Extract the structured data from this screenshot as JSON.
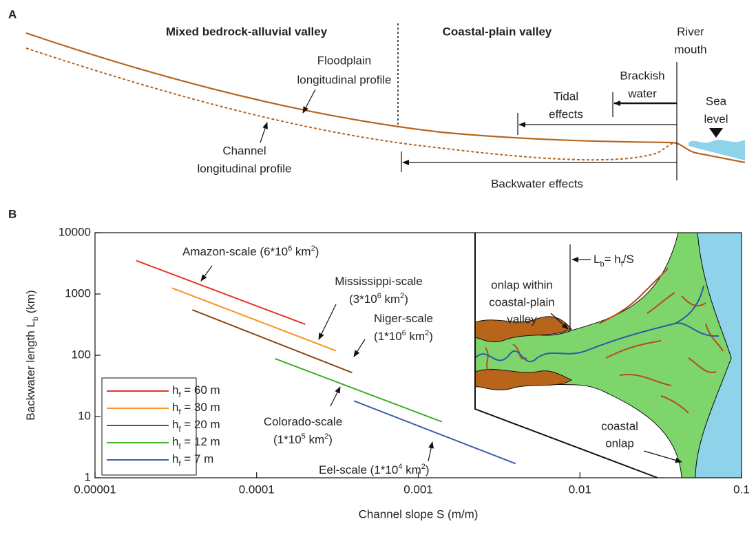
{
  "panel_a": {
    "label": "A",
    "zone_left": "Mixed bedrock-alluvial valley",
    "zone_right": "Coastal-plain valley",
    "river_mouth": [
      "River",
      "mouth"
    ],
    "floodplain": [
      "Floodplain",
      "longitudinal profile"
    ],
    "channel": [
      "Channel",
      "longitudinal profile"
    ],
    "brackish": [
      "Brackish",
      "water"
    ],
    "tidal": [
      "Tidal",
      "effects"
    ],
    "sea_level": [
      "Sea",
      "level"
    ],
    "backwater": "Backwater effects"
  },
  "chart_data": {
    "type": "line",
    "panel_label": "B",
    "x_label": "Channel slope S (m/m)",
    "y_label": [
      "Backwater length L",
      "b",
      " (km)"
    ],
    "xscale": "log",
    "yscale": "log",
    "xlim": [
      1e-05,
      0.1
    ],
    "ylim": [
      1,
      10000
    ],
    "xticks": [
      1e-05,
      0.0001,
      0.001,
      0.01,
      0.1
    ],
    "yticks": [
      1,
      10,
      100,
      1000,
      10000
    ],
    "series": [
      {
        "name": [
          "h",
          "f",
          " = 60 m"
        ],
        "color": "#e3342c",
        "x": [
          1.8e-05,
          0.0002
        ],
        "values": [
          3500,
          320
        ]
      },
      {
        "name": [
          "h",
          "f",
          " = 30 m"
        ],
        "color": "#f7931e",
        "x": [
          3e-05,
          0.00031
        ],
        "values": [
          1250,
          118
        ]
      },
      {
        "name": [
          "h",
          "f",
          " = 20 m"
        ],
        "color": "#8b4513",
        "x": [
          4e-05,
          0.00039
        ],
        "values": [
          550,
          52
        ]
      },
      {
        "name": [
          "h",
          "f",
          " = 12 m"
        ],
        "color": "#3fae2a",
        "x": [
          0.00013,
          0.0014
        ],
        "values": [
          88,
          8.2
        ]
      },
      {
        "name": [
          "h",
          "f",
          " = 7 m"
        ],
        "color": "#3c5fa8",
        "x": [
          0.0004,
          0.004
        ],
        "values": [
          18,
          1.7
        ]
      }
    ],
    "annotations": [
      [
        [
          "Amazon-scale (6*10",
          "6",
          " km",
          "2",
          ")"
        ]
      ],
      [
        [
          "Mississippi-scale"
        ],
        [
          "(3*10",
          "6",
          " km",
          "2",
          ")"
        ]
      ],
      [
        [
          "Niger-scale"
        ],
        [
          "(1*10",
          "6",
          " km",
          "2",
          ")"
        ]
      ],
      [
        [
          "Colorado-scale"
        ],
        [
          "(1*10",
          "5",
          " km",
          "2",
          ")"
        ]
      ],
      [
        [
          "Eel-scale (1*10",
          "4",
          " km",
          "2",
          ")"
        ]
      ]
    ],
    "inset": {
      "onlap_valley": [
        "onlap within",
        "coastal-plain",
        "valley"
      ],
      "lb_formula": [
        "L",
        "b",
        "= h",
        "f",
        "/S"
      ],
      "coastal_onlap": [
        "coastal",
        "onlap"
      ]
    }
  }
}
